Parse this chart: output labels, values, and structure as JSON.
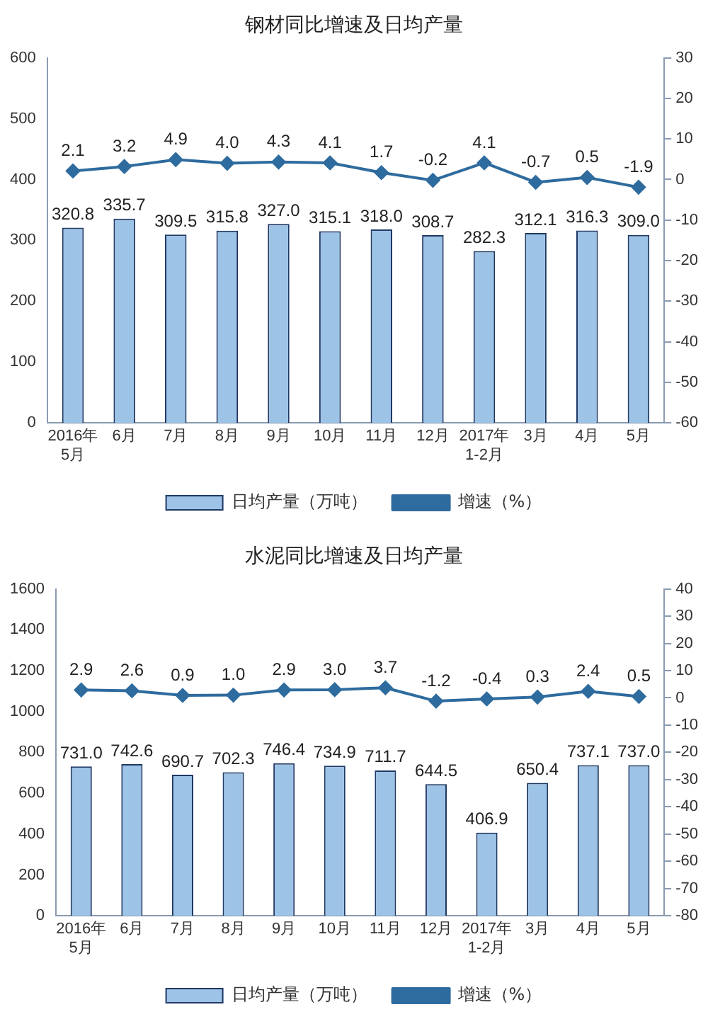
{
  "chart_data": [
    {
      "type": "bar",
      "title": "钢材同比增速及日均产量",
      "categories": [
        "2016年\n5月",
        "6月",
        "7月",
        "8月",
        "9月",
        "10月",
        "11月",
        "12月",
        "2017年\n1-2月",
        "3月",
        "4月",
        "5月"
      ],
      "series": [
        {
          "name": "日均产量（万吨）",
          "color": "#9dc3e6",
          "values": [
            320.8,
            335.7,
            309.5,
            315.8,
            327,
            315.1,
            318,
            308.7,
            282.3,
            312.1,
            316.3,
            309
          ],
          "value_labels": [
            "320.8",
            "335.7",
            "309.5",
            "315.8",
            "327.0",
            "315.1",
            "318.0",
            "308.7",
            "282.3",
            "312.1",
            "316.3",
            "309.0"
          ]
        },
        {
          "name": "增速（%）",
          "type": "line",
          "axis": "y2",
          "color": "#2e6b9e",
          "values": [
            2.1,
            3.2,
            4.9,
            4,
            4.3,
            4.1,
            1.7,
            -0.2,
            4.1,
            -0.7,
            0.5,
            -1.9
          ],
          "value_labels": [
            "2.1",
            "3.2",
            "4.9",
            "4.0",
            "4.3",
            "4.1",
            "1.7",
            "-0.2",
            "4.1",
            "-0.7",
            "0.5",
            "-1.9"
          ]
        }
      ],
      "ylim": [
        0,
        600
      ],
      "yticks": [
        0,
        100,
        200,
        300,
        400,
        500,
        600
      ],
      "y2lim": [
        -60,
        30
      ],
      "y2ticks": [
        -60,
        -50,
        -40,
        -30,
        -20,
        -10,
        0,
        10,
        20,
        30
      ],
      "legend": "bottom",
      "grid": false,
      "marker": "diamond",
      "line_style": "solid"
    },
    {
      "type": "bar",
      "title": "水泥同比增速及日均产量",
      "categories": [
        "2016年\n5月",
        "6月",
        "7月",
        "8月",
        "9月",
        "10月",
        "11月",
        "12月",
        "2017年\n1-2月",
        "3月",
        "4月",
        "5月"
      ],
      "series": [
        {
          "name": "日均产量（万吨）",
          "color": "#9dc3e6",
          "values": [
            731,
            742.6,
            690.7,
            702.3,
            746.4,
            734.9,
            711.7,
            644.5,
            406.9,
            650.4,
            737.1,
            737
          ],
          "value_labels": [
            "731.0",
            "742.6",
            "690.7",
            "702.3",
            "746.4",
            "734.9",
            "711.7",
            "644.5",
            "406.9",
            "650.4",
            "737.1",
            "737.0"
          ]
        },
        {
          "name": "增速（%）",
          "type": "line",
          "axis": "y2",
          "color": "#2e6b9e",
          "values": [
            2.9,
            2.6,
            0.9,
            1,
            2.9,
            3,
            3.7,
            -1.2,
            -0.4,
            0.3,
            2.4,
            0.5
          ],
          "value_labels": [
            "2.9",
            "2.6",
            "0.9",
            "1.0",
            "2.9",
            "3.0",
            "3.7",
            "-1.2",
            "-0.4",
            "0.3",
            "2.4",
            "0.5"
          ]
        }
      ],
      "ylim": [
        0,
        1600
      ],
      "yticks": [
        0,
        200,
        400,
        600,
        800,
        1000,
        1200,
        1400,
        1600
      ],
      "y2lim": [
        -80,
        40
      ],
      "y2ticks": [
        -80,
        -70,
        -60,
        -50,
        -40,
        -30,
        -20,
        -10,
        0,
        10,
        20,
        30,
        40
      ],
      "legend": "bottom",
      "grid": false,
      "marker": "diamond",
      "line_style": "solid"
    }
  ]
}
